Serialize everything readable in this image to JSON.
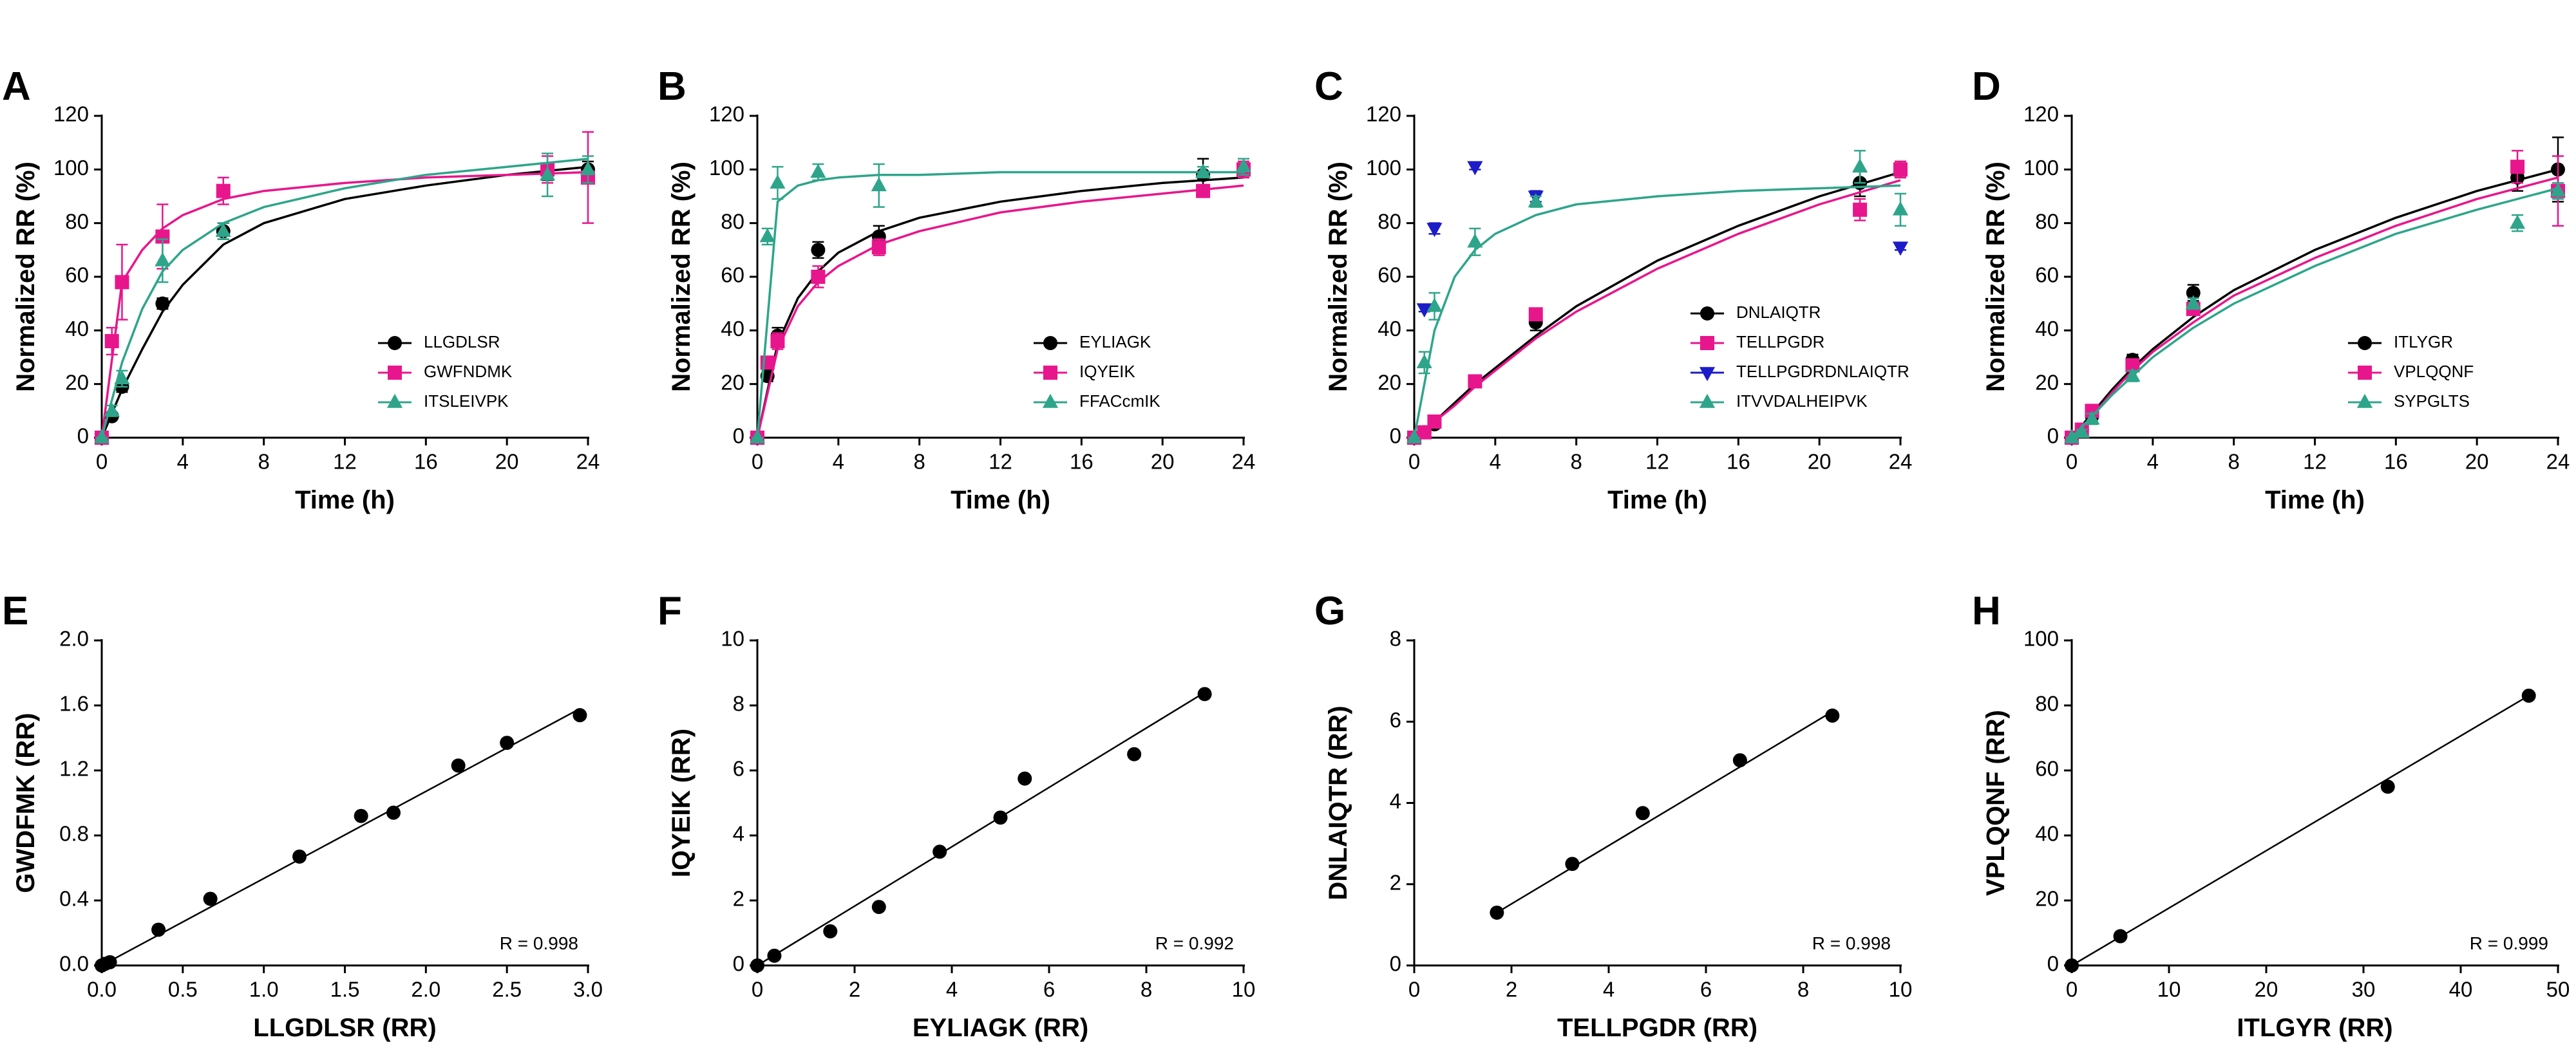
{
  "chart_data": [
    {
      "type": "scatter",
      "panel_label": "A",
      "x_label": "Time (h)",
      "y_label": "Normalized RR (%)",
      "xlim": [
        0,
        24
      ],
      "xticks": [
        0,
        4,
        8,
        12,
        16,
        20,
        24
      ],
      "ylim": [
        0,
        120
      ],
      "yticks": [
        0,
        20,
        40,
        60,
        80,
        100,
        120
      ],
      "legend": "lower right",
      "x": [
        0,
        0.5,
        1,
        3,
        6,
        22,
        24
      ],
      "fit_x": [
        0,
        1,
        2,
        3,
        4,
        6,
        8,
        12,
        16,
        20,
        24
      ],
      "series": [
        {
          "name": "LLGDLSR",
          "color": "#000000",
          "marker": "circle",
          "values": [
            0,
            8,
            19,
            50,
            77,
            99,
            100
          ],
          "errors": [
            0,
            1,
            2,
            2,
            3,
            3,
            3
          ],
          "fit": [
            0,
            18,
            33,
            47,
            57,
            72,
            80,
            89,
            94,
            98,
            101
          ]
        },
        {
          "name": "GWFNDMK",
          "color": "#e8168c",
          "marker": "square",
          "values": [
            0,
            36,
            58,
            75,
            92,
            100,
            97
          ],
          "errors": [
            0,
            5,
            14,
            12,
            5,
            5,
            17
          ],
          "fit": [
            0,
            58,
            70,
            78,
            83,
            89,
            92,
            95,
            97,
            98,
            99
          ]
        },
        {
          "name": "ITSLEIVPK",
          "color": "#2ea58a",
          "marker": "triangle-up",
          "values": [
            0,
            10,
            22,
            66,
            77,
            98,
            100
          ],
          "errors": [
            0,
            2,
            3,
            8,
            3,
            8,
            5
          ],
          "fit": [
            0,
            28,
            48,
            62,
            70,
            80,
            86,
            93,
            98,
            101,
            104
          ]
        }
      ]
    },
    {
      "type": "scatter",
      "panel_label": "B",
      "x_label": "Time (h)",
      "y_label": "Normalized RR (%)",
      "xlim": [
        0,
        24
      ],
      "xticks": [
        0,
        4,
        8,
        12,
        16,
        20,
        24
      ],
      "ylim": [
        0,
        120
      ],
      "yticks": [
        0,
        20,
        40,
        60,
        80,
        100,
        120
      ],
      "legend": "lower right",
      "x": [
        0,
        0.5,
        1,
        3,
        6,
        22,
        24
      ],
      "fit_x": [
        0,
        1,
        2,
        3,
        4,
        6,
        8,
        12,
        16,
        20,
        24
      ],
      "series": [
        {
          "name": "EYLIAGK",
          "color": "#000000",
          "marker": "circle",
          "values": [
            0,
            23,
            38,
            70,
            75,
            98,
            100
          ],
          "errors": [
            0,
            2,
            3,
            3,
            4,
            6,
            3
          ],
          "fit": [
            0,
            35,
            52,
            62,
            69,
            77,
            82,
            88,
            92,
            95,
            97
          ]
        },
        {
          "name": "IQYEIK",
          "color": "#e8168c",
          "marker": "square",
          "values": [
            0,
            28,
            36,
            60,
            71,
            92,
            100
          ],
          "errors": [
            0,
            2,
            3,
            4,
            3,
            2,
            3
          ],
          "fit": [
            0,
            33,
            49,
            58,
            64,
            72,
            77,
            84,
            88,
            91,
            94
          ]
        },
        {
          "name": "FFACcmIK",
          "color": "#2ea58a",
          "marker": "triangle-up",
          "values": [
            0,
            75,
            95,
            99,
            94,
            99,
            101
          ],
          "errors": [
            0,
            3,
            6,
            3,
            8,
            2,
            3
          ],
          "fit": [
            0,
            88,
            94,
            96,
            97,
            98,
            98,
            99,
            99,
            99,
            99
          ]
        }
      ]
    },
    {
      "type": "scatter",
      "panel_label": "C",
      "x_label": "Time (h)",
      "y_label": "Normalized RR (%)",
      "xlim": [
        0,
        24
      ],
      "xticks": [
        0,
        4,
        8,
        12,
        16,
        20,
        24
      ],
      "ylim": [
        0,
        120
      ],
      "yticks": [
        0,
        20,
        40,
        60,
        80,
        100,
        120
      ],
      "legend": "lower right",
      "x": [
        0,
        0.5,
        1,
        3,
        6,
        22,
        24
      ],
      "fit_x": [
        0,
        1,
        2,
        3,
        4,
        6,
        8,
        12,
        16,
        20,
        24
      ],
      "series": [
        {
          "name": "DNLAIQTR",
          "color": "#000000",
          "marker": "circle",
          "values": [
            0,
            2,
            5,
            21,
            43,
            95,
            100
          ],
          "errors": [
            0,
            1,
            1,
            2,
            3,
            5,
            3
          ],
          "fit": [
            0,
            6,
            13,
            20,
            26,
            38,
            49,
            66,
            79,
            90,
            99
          ]
        },
        {
          "name": "TELLPGDR",
          "color": "#e8168c",
          "marker": "square",
          "values": [
            0,
            2,
            6,
            21,
            46,
            85,
            100
          ],
          "errors": [
            0,
            1,
            1,
            2,
            2,
            4,
            3
          ],
          "fit": [
            0,
            6,
            12,
            19,
            25,
            37,
            47,
            63,
            76,
            87,
            96
          ]
        },
        {
          "name": "TELLPGDRDNLAIQTR",
          "color": "#1c1cc8",
          "marker": "triangle-down",
          "values": [
            null,
            48,
            78,
            101,
            90,
            null,
            71
          ],
          "errors": [
            null,
            1,
            2,
            1,
            2,
            null,
            1
          ]
        },
        {
          "name": "ITVVDALHEIPVK",
          "color": "#2ea58a",
          "marker": "triangle-up",
          "values": [
            0,
            28,
            49,
            73,
            88,
            101,
            85
          ],
          "errors": [
            0,
            4,
            5,
            5,
            2,
            6,
            6
          ],
          "fit": [
            0,
            40,
            60,
            70,
            76,
            83,
            87,
            90,
            92,
            93,
            94
          ]
        }
      ]
    },
    {
      "type": "scatter",
      "panel_label": "D",
      "x_label": "Time (h)",
      "y_label": "Normalized RR (%)",
      "xlim": [
        0,
        24
      ],
      "xticks": [
        0,
        4,
        8,
        12,
        16,
        20,
        24
      ],
      "ylim": [
        0,
        120
      ],
      "yticks": [
        0,
        20,
        40,
        60,
        80,
        100,
        120
      ],
      "legend": "lower right",
      "x": [
        0,
        0.5,
        1,
        3,
        6,
        22,
        24
      ],
      "fit_x": [
        0,
        1,
        2,
        3,
        4,
        6,
        8,
        12,
        16,
        20,
        24
      ],
      "series": [
        {
          "name": "ITLYGR",
          "color": "#000000",
          "marker": "circle",
          "values": [
            0,
            3,
            8,
            29,
            54,
            97,
            100
          ],
          "errors": [
            0,
            1,
            2,
            2,
            3,
            5,
            12
          ],
          "fit": [
            0,
            9,
            18,
            26,
            33,
            45,
            55,
            70,
            82,
            92,
            100
          ]
        },
        {
          "name": "VPLQQNF",
          "color": "#e8168c",
          "marker": "square",
          "values": [
            0,
            3,
            10,
            27,
            48,
            101,
            92
          ],
          "errors": [
            0,
            1,
            2,
            2,
            2,
            6,
            13
          ],
          "fit": [
            0,
            8,
            17,
            25,
            32,
            43,
            53,
            67,
            79,
            89,
            97
          ]
        },
        {
          "name": "SYPGLTS",
          "color": "#2ea58a",
          "marker": "triangle-up",
          "values": [
            0,
            2,
            7,
            23,
            50,
            80,
            92
          ],
          "errors": [
            0,
            1,
            2,
            2,
            2,
            3,
            3
          ],
          "fit": [
            0,
            8,
            16,
            23,
            30,
            41,
            50,
            64,
            76,
            85,
            93
          ]
        }
      ]
    },
    {
      "type": "scatter",
      "panel_label": "E",
      "x_label": "LLGDLSR (RR)",
      "y_label": "GWDFMK (RR)",
      "annotation": "R = 0.998",
      "xlim": [
        0,
        3
      ],
      "xticks": [
        {
          "value": 0,
          "label": "0.0"
        },
        0.5,
        {
          "value": 1,
          "label": "1.0"
        },
        1.5,
        {
          "value": 2,
          "label": "2.0"
        },
        2.5,
        {
          "value": 3,
          "label": "3.0"
        }
      ],
      "ylim": [
        0,
        2
      ],
      "yticks": [
        {
          "value": 0,
          "label": "0.0"
        },
        0.4,
        0.8,
        1.2,
        1.6,
        {
          "value": 2,
          "label": "2.0"
        }
      ],
      "color": "#000000",
      "x": [
        0,
        0.02,
        0.05,
        0.35,
        0.67,
        1.22,
        1.6,
        1.8,
        2.2,
        2.5,
        2.95
      ],
      "values": [
        0,
        0.01,
        0.02,
        0.22,
        0.41,
        0.67,
        0.92,
        0.94,
        1.23,
        1.37,
        1.54
      ],
      "fit_line": {
        "x": [
          0,
          2.95
        ],
        "y": [
          0,
          1.58
        ]
      }
    },
    {
      "type": "scatter",
      "panel_label": "F",
      "x_label": "EYLIAGK (RR)",
      "y_label": "IQYEIK (RR)",
      "annotation": "R = 0.992",
      "xlim": [
        0,
        10
      ],
      "xticks": [
        0,
        2,
        4,
        6,
        8,
        10
      ],
      "ylim": [
        0,
        10
      ],
      "yticks": [
        0,
        2,
        4,
        6,
        8,
        10
      ],
      "color": "#000000",
      "x": [
        0,
        0.35,
        1.5,
        2.5,
        3.75,
        5,
        5.5,
        7.75,
        9.2
      ],
      "values": [
        0,
        0.3,
        1.05,
        1.8,
        3.5,
        4.55,
        5.75,
        6.5,
        8.35
      ],
      "fit_line": {
        "x": [
          0,
          9.2
        ],
        "y": [
          0,
          8.4
        ]
      }
    },
    {
      "type": "scatter",
      "panel_label": "G",
      "x_label": "TELLPGDR (RR)",
      "y_label": "DNLAIQTR (RR)",
      "annotation": "R = 0.998",
      "xlim": [
        0,
        10
      ],
      "xticks": [
        0,
        2,
        4,
        6,
        8,
        10
      ],
      "ylim": [
        0,
        8
      ],
      "yticks": [
        0,
        2,
        4,
        6,
        8
      ],
      "color": "#000000",
      "x": [
        1.7,
        3.25,
        4.7,
        6.7,
        8.6
      ],
      "values": [
        1.3,
        2.5,
        3.75,
        5.05,
        6.15
      ],
      "fit_line": {
        "x": [
          1.7,
          8.6
        ],
        "y": [
          1.3,
          6.25
        ]
      }
    },
    {
      "type": "scatter",
      "panel_label": "H",
      "x_label": "ITLGYR (RR)",
      "y_label": "VPLQQNF (RR)",
      "annotation": "R = 0.999",
      "xlim": [
        0,
        50
      ],
      "xticks": [
        0,
        10,
        20,
        30,
        40,
        50
      ],
      "ylim": [
        0,
        100
      ],
      "yticks": [
        0,
        20,
        40,
        60,
        80,
        100
      ],
      "color": "#000000",
      "x": [
        0,
        5,
        32.5,
        47
      ],
      "values": [
        0,
        9,
        55,
        83
      ],
      "fit_line": {
        "x": [
          0,
          47
        ],
        "y": [
          0,
          83
        ]
      }
    }
  ]
}
